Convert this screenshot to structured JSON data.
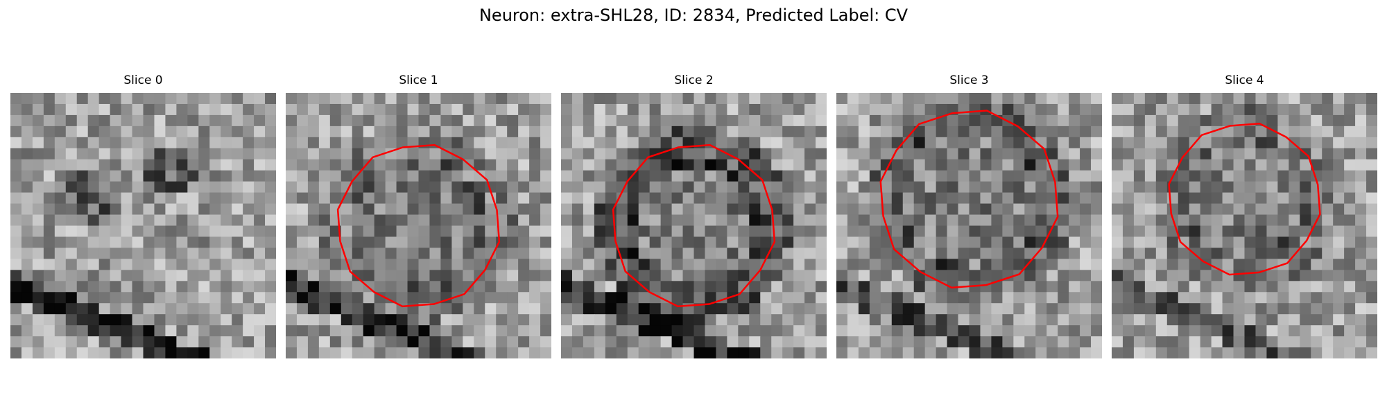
{
  "figure": {
    "title": "Neuron: extra-SHL28, ID: 2834, Predicted Label: CV"
  },
  "panels": [
    {
      "label": "Slice 0",
      "has_outline": false,
      "seed": 11,
      "rim": 0.0,
      "diag_stripe": 0.95
    },
    {
      "label": "Slice 1",
      "has_outline": true,
      "seed": 23,
      "rim": 0.35,
      "diag_stripe": 0.75
    },
    {
      "label": "Slice 2",
      "has_outline": true,
      "seed": 37,
      "rim": 0.8,
      "diag_stripe": 0.85
    },
    {
      "label": "Slice 3",
      "has_outline": true,
      "seed": 51,
      "rim": 0.55,
      "diag_stripe": 0.6
    },
    {
      "label": "Slice 4",
      "has_outline": true,
      "seed": 67,
      "rim": 0.35,
      "diag_stripe": 0.5
    }
  ],
  "outline_color": "#ff0000",
  "colormap": "gray"
}
